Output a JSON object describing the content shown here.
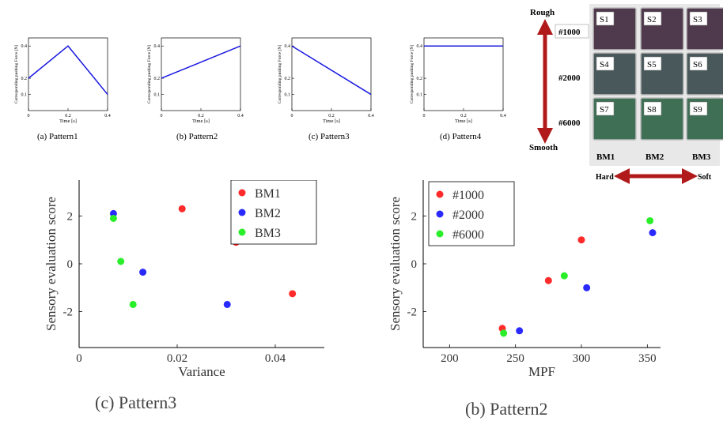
{
  "small_panels": [
    {
      "caption": "(a) Pattern1"
    },
    {
      "caption": "(b) Pattern2"
    },
    {
      "caption": "(c) Pattern3"
    },
    {
      "caption": "(d) Pattern4"
    }
  ],
  "samples_photo": {
    "rough_label": "Rough",
    "smooth_label": "Smooth",
    "hard_label": "Hard",
    "soft_label": "Soft",
    "row_labels": [
      "#1000",
      "#2000",
      "#6000"
    ],
    "col_labels": [
      "BM1",
      "BM2",
      "BM3"
    ],
    "tiles": [
      "S1",
      "S2",
      "S3",
      "S4",
      "S5",
      "S6",
      "S7",
      "S8",
      "S9"
    ],
    "row_colors": [
      "#4e3a4c",
      "#49585a",
      "#3f6f55"
    ]
  },
  "big_captions": {
    "left": "(c) Pattern3",
    "right": "(b) Pattern2"
  },
  "chart_data": [
    {
      "type": "line",
      "xlabel": "Time [s]",
      "ylabel": "Corresponding pushing Force [N]",
      "xlim": [
        0,
        0.4
      ],
      "ylim": [
        0,
        0.45
      ],
      "xticks": [
        0,
        0.2,
        0.4
      ],
      "yticks": [
        0.1,
        0.2,
        0.4
      ],
      "x": [
        0,
        0.2,
        0.4
      ],
      "y": [
        0.2,
        0.4,
        0.1
      ],
      "color": "#1a1ae0"
    },
    {
      "type": "line",
      "xlabel": "Time [s]",
      "ylabel": "Corresponding pushing Force [N]",
      "xlim": [
        0,
        0.4
      ],
      "ylim": [
        0,
        0.45
      ],
      "xticks": [
        0,
        0.2,
        0.4
      ],
      "yticks": [
        0.1,
        0.2,
        0.4
      ],
      "x": [
        0,
        0.4
      ],
      "y": [
        0.2,
        0.4
      ],
      "color": "#1a1ae0"
    },
    {
      "type": "line",
      "xlabel": "Time [s]",
      "ylabel": "Corresponding pushing Force [N]",
      "xlim": [
        0,
        0.4
      ],
      "ylim": [
        0,
        0.45
      ],
      "xticks": [
        0,
        0.2,
        0.4
      ],
      "yticks": [
        0.1,
        0.2,
        0.4
      ],
      "x": [
        0,
        0.4
      ],
      "y": [
        0.4,
        0.1
      ],
      "color": "#1a1ae0"
    },
    {
      "type": "line",
      "xlabel": "Time [s]",
      "ylabel": "Corresponding pushing Force [N]",
      "xlim": [
        0,
        0.4
      ],
      "ylim": [
        0,
        0.45
      ],
      "xticks": [
        0,
        0.2,
        0.4
      ],
      "yticks": [
        0.1,
        0.2,
        0.4
      ],
      "x": [
        0,
        0.4
      ],
      "y": [
        0.4,
        0.4
      ],
      "color": "#1a1ae0"
    },
    {
      "type": "scatter",
      "xlabel": "Variance",
      "ylabel": "Sensory evaluation score",
      "xlim": [
        0,
        0.05
      ],
      "ylim": [
        -3.5,
        3.5
      ],
      "xticks": [
        0,
        0.02,
        0.04
      ],
      "xtick_labels": [
        "0",
        "0.02",
        "0.04"
      ],
      "yticks": [
        -2,
        0,
        2
      ],
      "legend": "top-right",
      "series": [
        {
          "name": "BM1",
          "color": "#ff2a2a",
          "points": [
            [
              0.021,
              2.3
            ],
            [
              0.032,
              0.9
            ],
            [
              0.0435,
              -1.25
            ]
          ]
        },
        {
          "name": "BM2",
          "color": "#2a2aff",
          "points": [
            [
              0.007,
              2.1
            ],
            [
              0.013,
              -0.35
            ],
            [
              0.0302,
              -1.7
            ]
          ]
        },
        {
          "name": "BM3",
          "color": "#2aee2a",
          "points": [
            [
              0.007,
              1.9
            ],
            [
              0.0085,
              0.1
            ],
            [
              0.011,
              -1.7
            ]
          ]
        }
      ]
    },
    {
      "type": "scatter",
      "xlabel": "MPF",
      "ylabel": "Sensory evaluation score",
      "xlim": [
        180,
        360
      ],
      "ylim": [
        -3.5,
        3.5
      ],
      "xticks": [
        200,
        250,
        300,
        350
      ],
      "yticks": [
        -2,
        0,
        2
      ],
      "legend": "top-left",
      "series": [
        {
          "name": "#1000",
          "color": "#ff2a2a",
          "points": [
            [
              240,
              -2.7
            ],
            [
              275,
              -0.7
            ],
            [
              300,
              1.0
            ]
          ]
        },
        {
          "name": "#2000",
          "color": "#2a2aff",
          "points": [
            [
              253,
              -2.8
            ],
            [
              304,
              -1.0
            ],
            [
              354,
              1.3
            ]
          ]
        },
        {
          "name": "#6000",
          "color": "#2aee2a",
          "points": [
            [
              241,
              -2.9
            ],
            [
              287,
              -0.5
            ],
            [
              352,
              1.8
            ]
          ]
        }
      ]
    }
  ]
}
